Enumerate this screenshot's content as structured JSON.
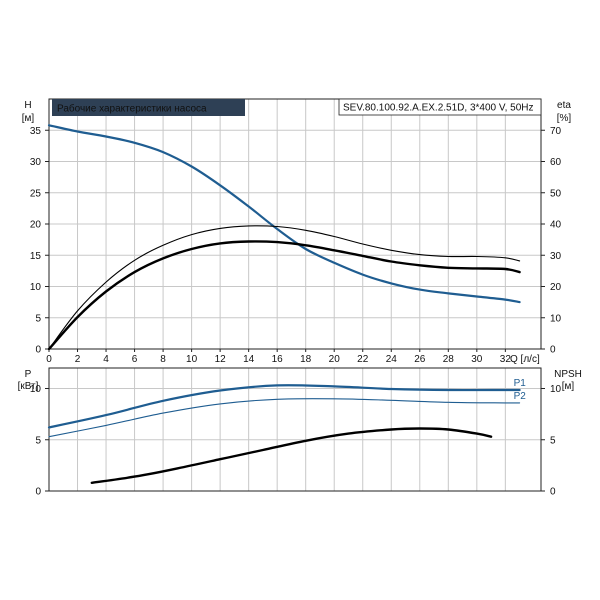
{
  "chart_data": [
    {
      "type": "line",
      "title": "Рабочие характеристики насоса",
      "model_label": "SEV.80.100.92.A.EX.2.51D, 3*400 V, 50Hz",
      "xlabel": "Q [л/с]",
      "ylabel_left": [
        "H",
        "[м]"
      ],
      "ylabel_right": [
        "eta",
        "[%]"
      ],
      "xlim": [
        0,
        34.5
      ],
      "ylim_left": [
        0,
        40
      ],
      "ylim_right": [
        0,
        80
      ],
      "xticks": [
        0,
        2,
        4,
        6,
        8,
        10,
        12,
        14,
        16,
        18,
        20,
        22,
        24,
        26,
        28,
        30,
        32
      ],
      "yticks_left": [
        0,
        5,
        10,
        15,
        20,
        25,
        30,
        35
      ],
      "yticks_right": [
        0,
        10,
        20,
        30,
        40,
        50,
        60,
        70
      ],
      "grid": true,
      "series": [
        {
          "axis": "left",
          "color": "#1f5d91",
          "x": [
            0,
            2,
            4,
            6,
            8,
            10,
            12,
            14,
            16,
            18,
            20,
            22,
            24,
            26,
            28,
            30,
            32,
            33
          ],
          "y": [
            35.8,
            34.8,
            34.0,
            33.0,
            31.5,
            29.2,
            26.2,
            22.8,
            19.2,
            16.0,
            13.8,
            11.9,
            10.5,
            9.5,
            8.9,
            8.4,
            7.9,
            7.5
          ]
        },
        {
          "axis": "right",
          "color": "#000000",
          "x": [
            0,
            2,
            4,
            6,
            8,
            10,
            12,
            14,
            16,
            18,
            20,
            22,
            24,
            26,
            28,
            30,
            32,
            33
          ],
          "y": [
            0,
            10.2,
            18.4,
            24.6,
            29.0,
            32.0,
            33.8,
            34.4,
            34.2,
            33.2,
            31.6,
            29.8,
            28.0,
            26.8,
            26.0,
            25.8,
            25.6,
            24.6
          ]
        },
        {
          "axis": "right",
          "color": "#000000",
          "x": [
            0,
            2,
            4,
            6,
            8,
            10,
            12,
            14,
            16,
            18,
            20,
            22,
            24,
            26,
            28,
            30,
            32,
            33
          ],
          "y": [
            0,
            12.2,
            21.4,
            28.4,
            33.2,
            36.6,
            38.6,
            39.4,
            39.2,
            38.0,
            36.0,
            33.6,
            31.6,
            30.2,
            29.6,
            29.6,
            29.2,
            28.2
          ]
        }
      ]
    },
    {
      "type": "line",
      "xlim": [
        0,
        34.5
      ],
      "ylabel_left": [
        "P",
        "[кВт]"
      ],
      "ylabel_right": [
        "NPSH",
        "[м]"
      ],
      "ylim_left": [
        0,
        12
      ],
      "ylim_right": [
        0,
        12
      ],
      "yticks_left": [
        0,
        5,
        10
      ],
      "yticks_right": [
        0,
        5,
        10
      ],
      "xticks": [
        0,
        2,
        4,
        6,
        8,
        10,
        12,
        14,
        16,
        18,
        20,
        22,
        24,
        26,
        28,
        30,
        32
      ],
      "grid": true,
      "series": [
        {
          "name": "P1",
          "axis": "left",
          "color": "#1f5d91",
          "x": [
            0,
            4,
            8,
            12,
            16,
            20,
            24,
            28,
            32,
            33
          ],
          "y": [
            6.2,
            7.4,
            8.8,
            9.8,
            10.3,
            10.2,
            9.95,
            9.85,
            9.85,
            9.85
          ]
        },
        {
          "name": "P2",
          "axis": "left",
          "color": "#1f5d91",
          "x": [
            0,
            4,
            8,
            12,
            16,
            20,
            24,
            28,
            32,
            33
          ],
          "y": [
            5.3,
            6.4,
            7.6,
            8.5,
            8.95,
            9.0,
            8.85,
            8.65,
            8.6,
            8.6
          ]
        },
        {
          "name": "NPSH",
          "axis": "right",
          "color": "#000000",
          "x": [
            3,
            6,
            9,
            12,
            15,
            18,
            21,
            24,
            26,
            28,
            30,
            31
          ],
          "y": [
            0.8,
            1.4,
            2.2,
            3.1,
            4.0,
            4.9,
            5.6,
            6.0,
            6.1,
            6.0,
            5.6,
            5.3
          ]
        }
      ]
    }
  ]
}
